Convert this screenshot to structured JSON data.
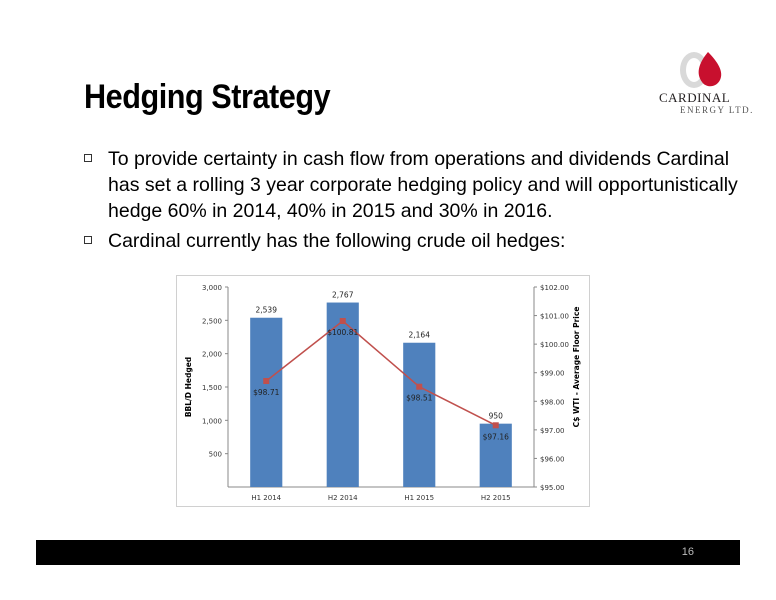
{
  "slide": {
    "title": "Hedging Strategy",
    "bullets": [
      "To provide certainty in cash flow from operations and dividends Cardinal has set a rolling 3 year corporate hedging policy and will opportunistically hedge 60% in 2014, 40% in 2015 and 30% in 2016.",
      "Cardinal currently has the following crude oil hedges:"
    ],
    "page_number": "16"
  },
  "logo": {
    "name": "CARDINAL",
    "sub": "ENERGY LTD.",
    "flame_color": "#c8102e"
  },
  "chart_data": {
    "type": "bar",
    "categories": [
      "H1 2014",
      "H2 2014",
      "H1 2015",
      "H2 2015"
    ],
    "series": [
      {
        "type": "bar",
        "axis": "left",
        "values": [
          2539,
          2767,
          2164,
          950
        ],
        "labels": [
          "2,539",
          "2,767",
          "2,164",
          "950"
        ],
        "color": "#4f81bd"
      },
      {
        "type": "line",
        "axis": "right",
        "values": [
          98.71,
          100.81,
          98.51,
          97.16
        ],
        "labels": [
          "$98.71",
          "$100.81",
          "$98.51",
          "$97.16"
        ],
        "color": "#c0504d"
      }
    ],
    "ylabel": "BBL/D Hedged",
    "y2label": "C$ WTI - Average Floor Price",
    "ylim": [
      0,
      3000
    ],
    "y2lim": [
      95,
      102
    ],
    "yticks": [
      "3,000",
      "2,500",
      "2,000",
      "1,500",
      "1,000",
      "500"
    ],
    "y2ticks": [
      "$102.00",
      "$101.00",
      "$100.00",
      "$99.00",
      "$98.00",
      "$97.00",
      "$96.00",
      "$95.00"
    ]
  }
}
